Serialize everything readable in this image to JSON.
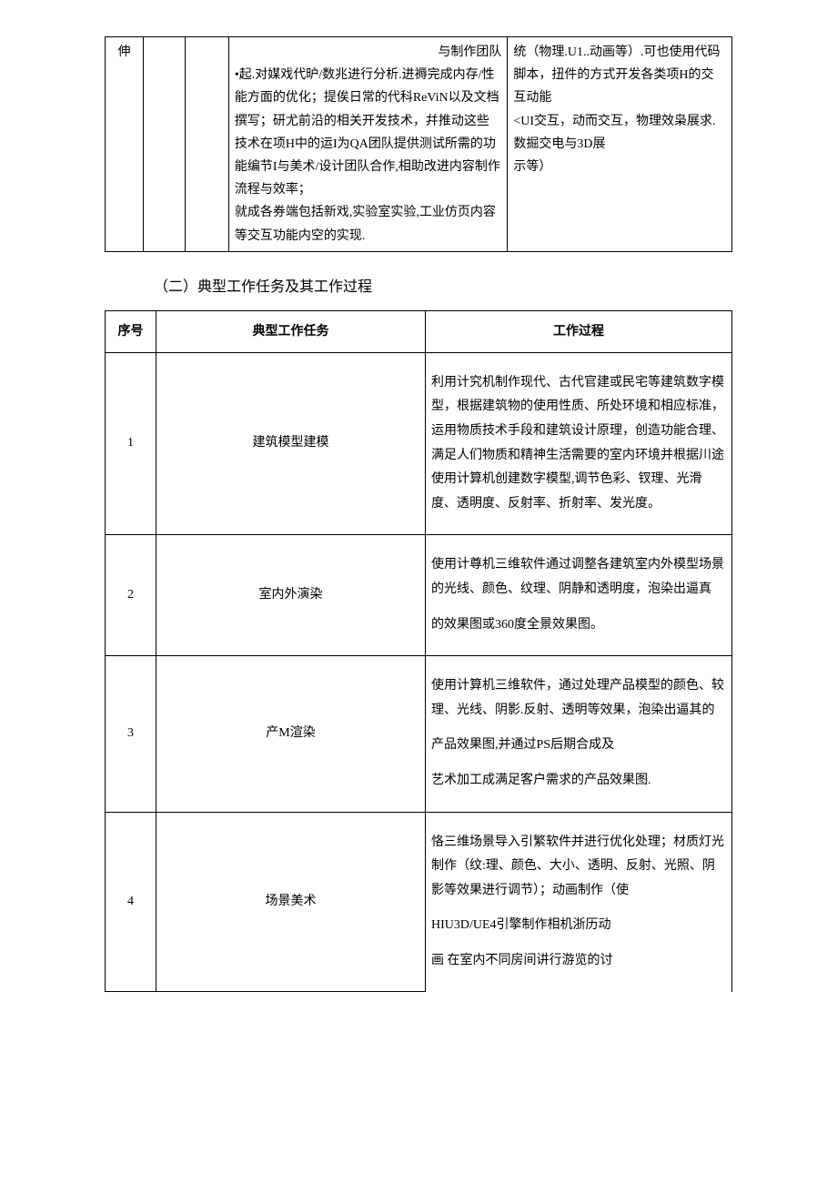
{
  "table1": {
    "row": {
      "col1": "伸",
      "col4": {
        "line1": "与制作团队",
        "line2": "•起.对媒戏代昈/数兆进行分析.进褥完成内存/性能方面的优化；提俟日常的代科ReViN以及文档撰写；研尤前沿的相关开发技术，幷推动这些技术在项H中的运I为QA团队提供测试所需的功能编节I与美术/设计团队合作,相助改进内容制作流程与效率；",
        "line3": "就成各券端包括新戏,实验室实验,工业仿页内容等交互功能内空的实现."
      },
      "col5": {
        "line1": "统（物理.U1..动画等）.可也使用代码脚本，扭件的方式开发各类项H的交互动能",
        "line2": "<UI交互，动而交互，物理效枭展求.数掘交电与3D展",
        "line3": "示等）"
      }
    }
  },
  "headings": {
    "section2": "（二）典型工作任务及其工作过程"
  },
  "table2": {
    "headers": {
      "col1": "序号",
      "col2": "典型工作任务",
      "col3": "工作过程"
    },
    "rows": [
      {
        "num": "1",
        "task": "建筑模型建模",
        "process": "利用计究机制作现代、古代官建或民宅等建筑数字模型，根据建筑物的使用性质、所处环境和相应标准，运用物质技术手段和建筑设计原理，创造功能合理、满足人们物质和精神生活需要的室内环境并根据川途使用计算机创建数字模型,调节色彩、钗理、光滑度、透明度、反射率、折射率、发光度。"
      },
      {
        "num": "2",
        "task": "室内外演染",
        "process_p1": "使用计尊机三维软件通过调整各建筑室内外模型场景的光线、颜色、纹理、阴静和透明度，泡染出逼真",
        "process_p2": "的效果图或360度全景效果图。"
      },
      {
        "num": "3",
        "task": "产M渲染",
        "process_p1": "使用计算机三维软件，通过处理产品模型的颜色、较理、光线、阴影.反射、透明等效果，泡染出逼其的",
        "process_p2": "产品效果图,并通过PS后期合成及",
        "process_p3": "艺术加工成满足客户需求的产品效果图."
      },
      {
        "num": "4",
        "task": "场景美术",
        "process_p1": "恪三维场景导入引繁软件并进行优化处理；材质灯光制作（纹:理、颜色、大小、透明、反射、光照、阴影等效果进行调节）；动画制作（使",
        "process_p2": "HIU3D/UE4引擎制作相机浙历动",
        "process_p3": "画 在室内不同房间讲行游览的讨"
      }
    ]
  }
}
